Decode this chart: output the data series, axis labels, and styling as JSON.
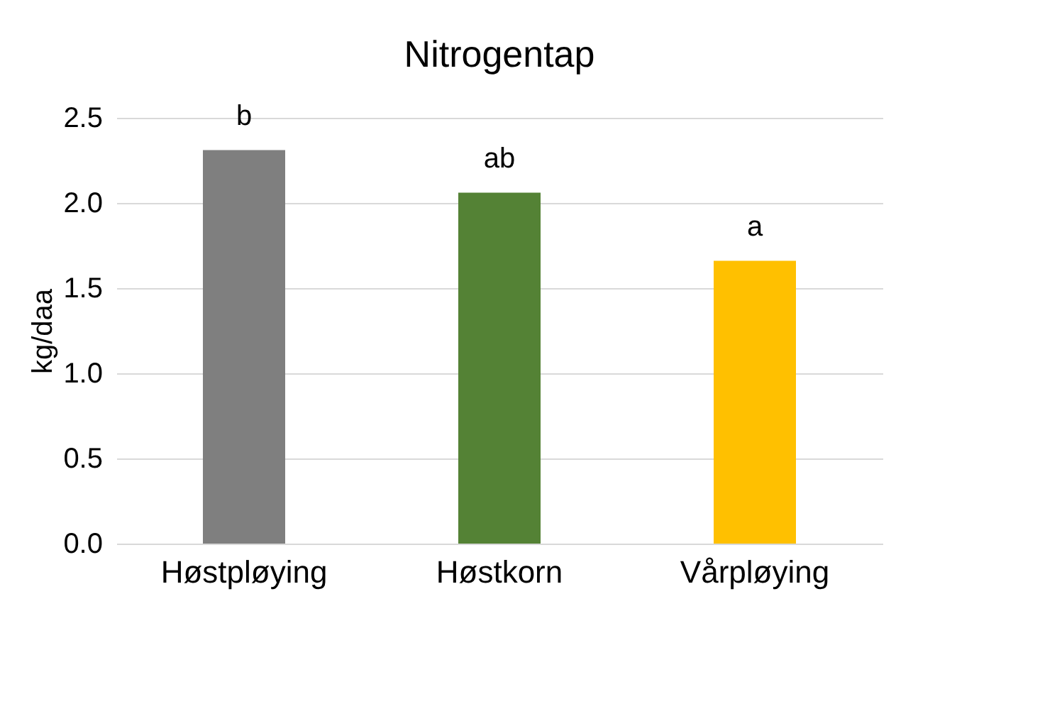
{
  "chart_data": {
    "type": "bar",
    "title": "Nitrogentap",
    "ylabel": "kg/daa",
    "categories": [
      "Høstpløying",
      "Høstkorn",
      "Vårpløying"
    ],
    "values": [
      2.31,
      2.06,
      1.66
    ],
    "colors": [
      "#7f7f7f",
      "#548235",
      "#ffc000"
    ],
    "ylim": [
      0,
      2.5
    ],
    "yticks": [
      {
        "value": 0,
        "label": "0.0"
      },
      {
        "value": 0.5,
        "label": "0.5"
      },
      {
        "value": 1,
        "label": "1.0"
      },
      {
        "value": 1.5,
        "label": "1.5"
      },
      {
        "value": 2,
        "label": "2.0"
      },
      {
        "value": 2.5,
        "label": "2.5"
      }
    ],
    "grid": "y",
    "annotations": [
      {
        "text": "b",
        "x": "Høstpløying",
        "y": 2.31
      },
      {
        "text": "ab",
        "x": "Høstkorn",
        "y": 2.06
      },
      {
        "text": "a",
        "x": "Vårpløying",
        "y": 1.66
      }
    ]
  }
}
